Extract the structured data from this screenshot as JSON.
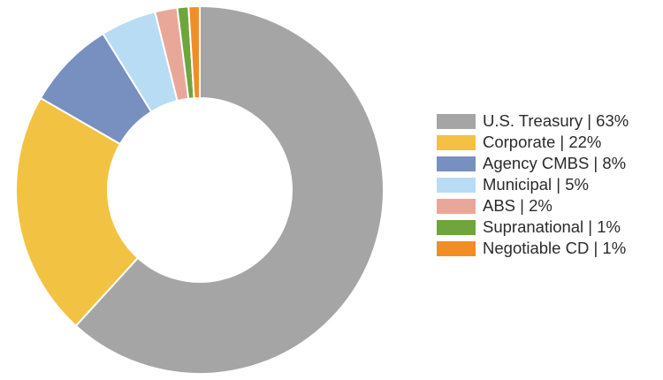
{
  "chart_data": {
    "type": "pie",
    "variant": "donut",
    "title": "",
    "legend_position": "right",
    "slices": [
      {
        "label": "U.S. Treasury | 63%",
        "name": "U.S. Treasury",
        "value": 63,
        "color": "#a5a5a5"
      },
      {
        "label": "Corporate | 22%",
        "name": "Corporate",
        "value": 22,
        "color": "#f2c242"
      },
      {
        "label": "Agency CMBS | 8%",
        "name": "Agency CMBS",
        "value": 8,
        "color": "#7890bf"
      },
      {
        "label": "Municipal | 5%",
        "name": "Municipal",
        "value": 5,
        "color": "#b8dcf3"
      },
      {
        "label": "ABS | 2%",
        "name": "ABS",
        "value": 2,
        "color": "#e9a79a"
      },
      {
        "label": "Supranational | 1%",
        "name": "Supranational",
        "value": 1,
        "color": "#6ea53d"
      },
      {
        "label": "Negotiable CD | 1%",
        "name": "Negotiable CD",
        "value": 1,
        "color": "#f28d26"
      }
    ],
    "slice_order": "clockwise from top"
  }
}
